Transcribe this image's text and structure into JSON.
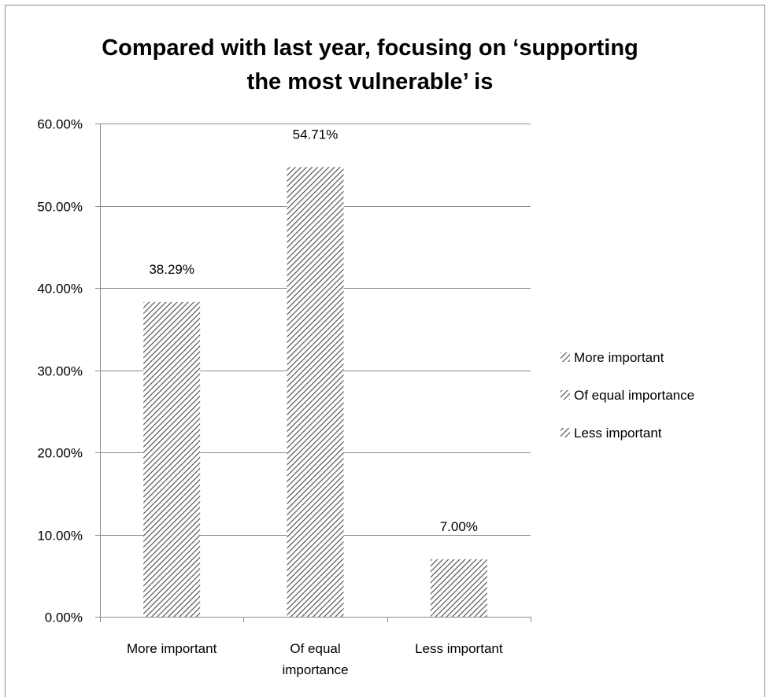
{
  "chart_data": {
    "type": "bar",
    "title": "Compared with last year, focusing on ‘supporting the most vulnerable’ is",
    "categories": [
      "More important",
      "Of equal importance",
      "Less important"
    ],
    "category_lines": [
      [
        "More important"
      ],
      [
        "Of equal",
        "importance"
      ],
      [
        "Less important"
      ]
    ],
    "values": [
      38.29,
      54.71,
      7.0
    ],
    "value_labels": [
      "38.29%",
      "54.71%",
      "7.00%"
    ],
    "ylim": [
      0,
      60
    ],
    "yticks": [
      0,
      10,
      20,
      30,
      40,
      50,
      60
    ],
    "ytick_labels": [
      "0.00%",
      "10.00%",
      "20.00%",
      "30.00%",
      "40.00%",
      "50.00%",
      "60.00%"
    ],
    "xlabel": "",
    "ylabel": "",
    "grid": true,
    "legend": {
      "placement": "right",
      "entries": [
        "More important",
        "Of equal importance",
        "Less important"
      ]
    },
    "bar_style": "diagonal-hatch",
    "colors": {
      "hatch": "#555555",
      "grid": "#8c8c8c",
      "axis": "#8c8c8c",
      "background": "#ffffff"
    }
  }
}
